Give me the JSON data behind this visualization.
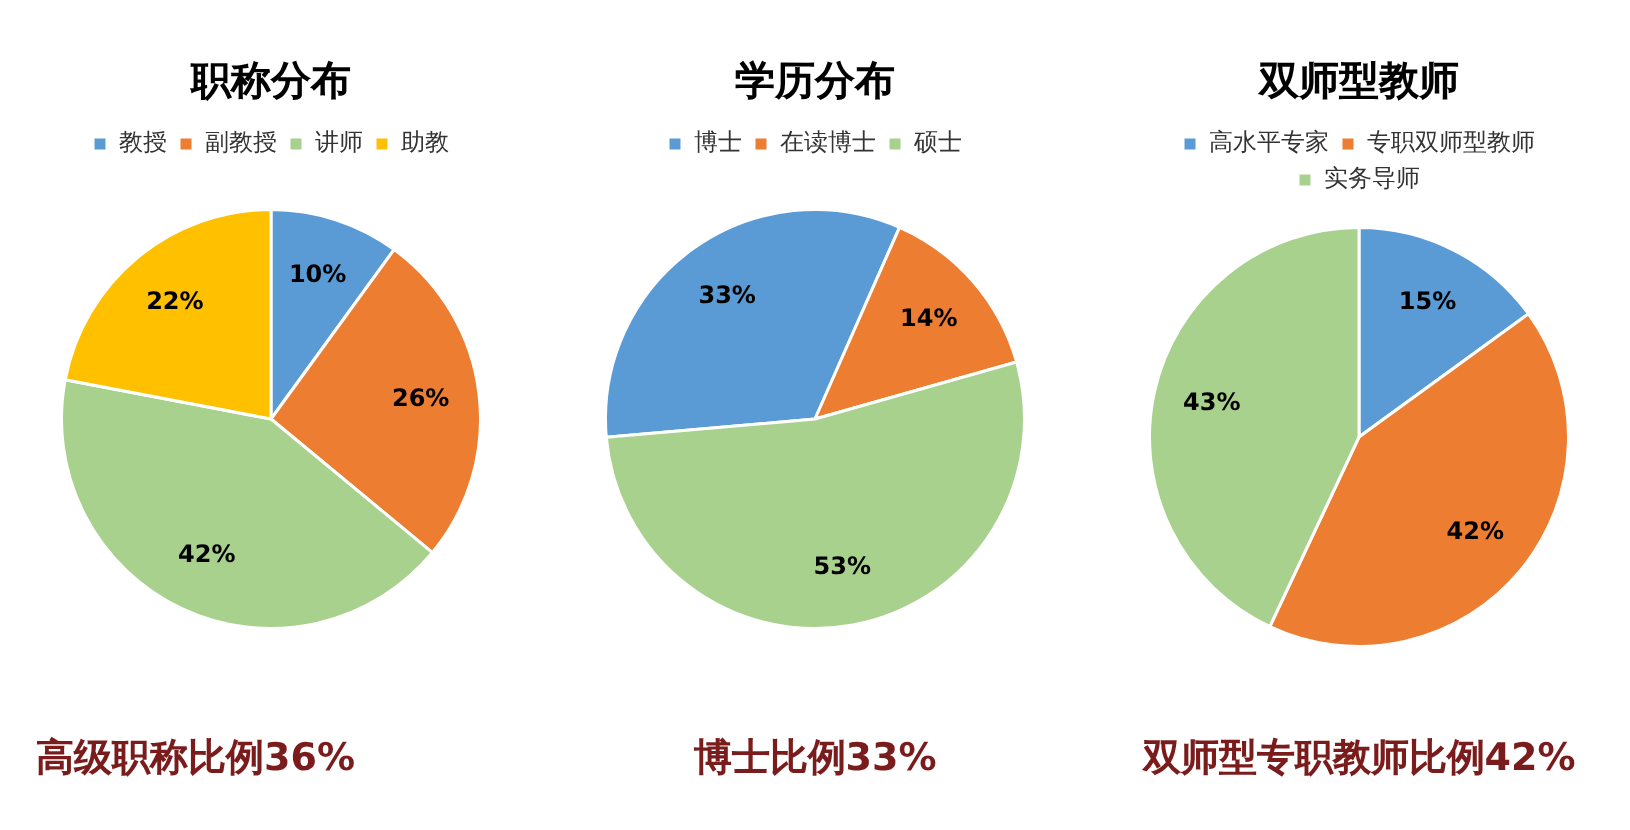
{
  "chart_data": [
    {
      "type": "pie",
      "title": "职称分布",
      "categories": [
        "教授",
        "副教授",
        "讲师",
        "助教"
      ],
      "values": [
        10,
        26,
        42,
        22
      ],
      "colors": [
        "#5b9bd5",
        "#ed7d31",
        "#a9d18e",
        "#ffc000"
      ],
      "value_labels": [
        "10%",
        "26%",
        "42%",
        "22%"
      ],
      "legend": "top",
      "annotations": [
        "高级职称比例36%"
      ]
    },
    {
      "type": "pie",
      "title": "学历分布",
      "categories": [
        "博士",
        "在读博士",
        "硕士"
      ],
      "values": [
        33,
        14,
        53
      ],
      "colors": [
        "#5b9bd5",
        "#ed7d31",
        "#a9d18e"
      ],
      "value_labels": [
        "33%",
        "14%",
        "53%"
      ],
      "legend": "top",
      "annotations": [
        "博士比例33%"
      ]
    },
    {
      "type": "pie",
      "title": "双师型教师",
      "categories": [
        "高水平专家",
        "专职双师型教师",
        "实务导师"
      ],
      "values": [
        15,
        42,
        43
      ],
      "colors": [
        "#5b9bd5",
        "#ed7d31",
        "#a9d18e"
      ],
      "value_labels": [
        "15%",
        "42%",
        "43%"
      ],
      "legend": "top",
      "annotations": [
        "双师型专职教师比例42%"
      ]
    }
  ]
}
